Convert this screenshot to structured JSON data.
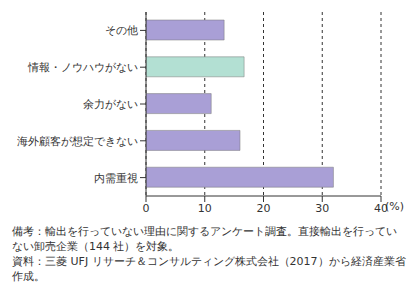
{
  "chart_data": {
    "type": "bar",
    "orientation": "horizontal",
    "categories": [
      "その他",
      "情報・ノウハウがない",
      "余力がない",
      "海外顧客が想定できない",
      "内需重視"
    ],
    "values": [
      13.3,
      16.7,
      11.1,
      16.0,
      31.9
    ],
    "colors": [
      "#a99fd6",
      "#b3e0d3",
      "#a99fd6",
      "#a99fd6",
      "#a99fd6"
    ],
    "xlabel": "(%)",
    "xlim": [
      0,
      40
    ],
    "xticks": [
      0,
      10,
      20,
      30,
      40
    ],
    "grid": true,
    "annotations": [
      "備考：輸出を行っていない理由に関するアンケート調査。直接輸出を行っていない卸売企業（144 社）を対象。",
      "資料：三菱 UFJ リサーチ＆コンサルティング株式会社（2017）から経済産業省作成。"
    ]
  }
}
